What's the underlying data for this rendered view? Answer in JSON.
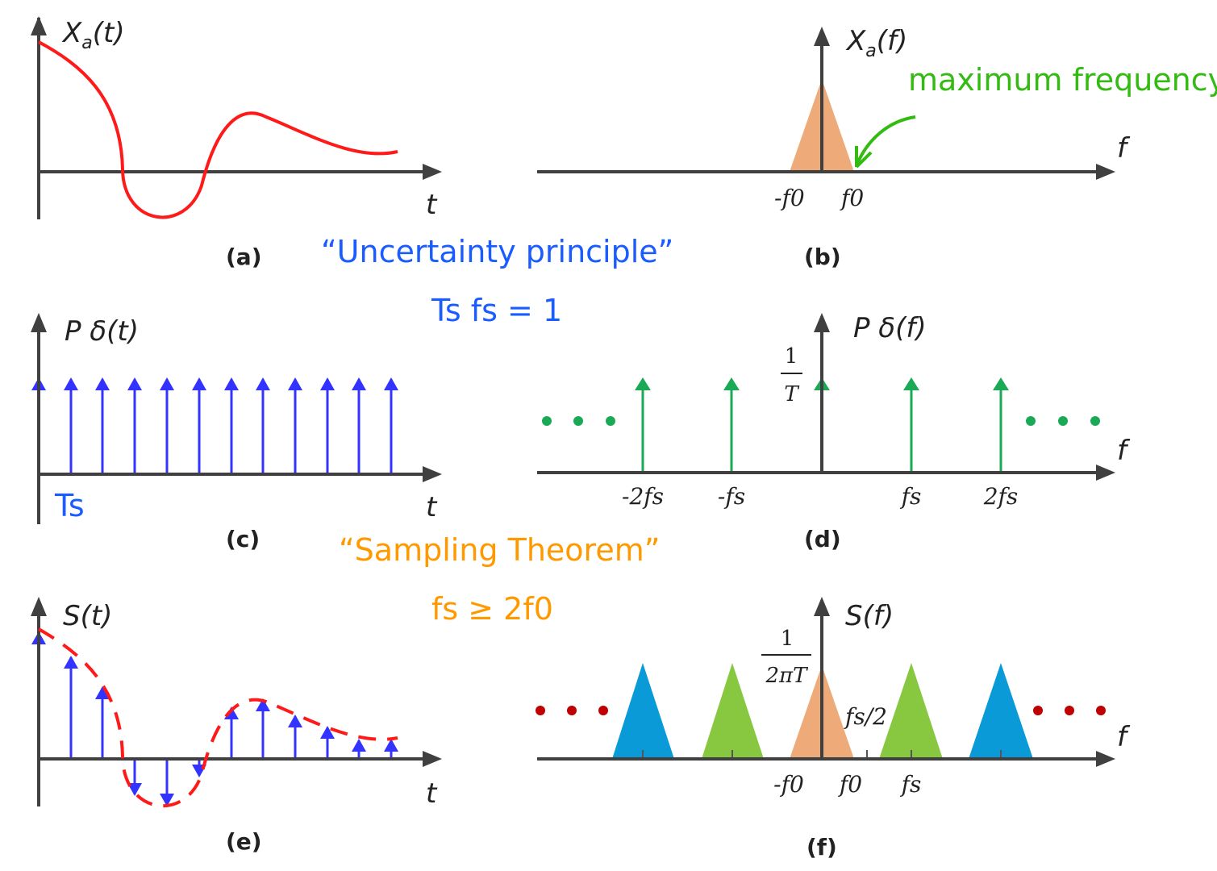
{
  "colors": {
    "axis": "#404040",
    "signal": "#ff1a1a",
    "impulse_time": "#3333ff",
    "impulse_freq": "#1aaa55",
    "baseband": "#eeaa78",
    "replica_green": "#88c840",
    "replica_blue": "#0a9ad8",
    "dots_green": "#1aaa55",
    "dots_red": "#c00000",
    "note_blue": "#1a5cff",
    "note_orange": "#ff9900",
    "note_green": "#33bb11"
  },
  "panels": {
    "a": {
      "caption": "(a)",
      "ylabel_main": "X",
      "ylabel_sub": "a",
      "ylabel_rest": "(t)",
      "xlabel": "t"
    },
    "b": {
      "caption": "(b)",
      "ylabel_main": "X",
      "ylabel_sub": "a",
      "ylabel_rest": "(f)",
      "xlabel": "f",
      "ticks": [
        "-f0",
        "f0"
      ]
    },
    "c": {
      "caption": "(c)",
      "ylabel": "P δ(t)",
      "xlabel": "t",
      "period_label": "Ts"
    },
    "d": {
      "caption": "(d)",
      "ylabel": "P δ(f)",
      "xlabel": "f",
      "ticks": [
        "-2fs",
        "-fs",
        "fs",
        "2fs"
      ],
      "amp_num": "1",
      "amp_den": "T"
    },
    "e": {
      "caption": "(e)",
      "ylabel": "S(t)",
      "xlabel": "t"
    },
    "f": {
      "caption": "(f)",
      "ylabel": "S(f)",
      "xlabel": "f",
      "ticks": [
        "-f0",
        "f0",
        "fs"
      ],
      "half_label": "fs/2",
      "amp_num": "1",
      "amp_den": "2πT"
    }
  },
  "annotations": {
    "max_freq": "maximum frequency",
    "uncertainty": "“Uncertainty principle”",
    "uncertainty_eq": "Ts fs = 1",
    "sampling": "“Sampling Theorem”",
    "sampling_eq": "fs ≥ 2f0"
  }
}
